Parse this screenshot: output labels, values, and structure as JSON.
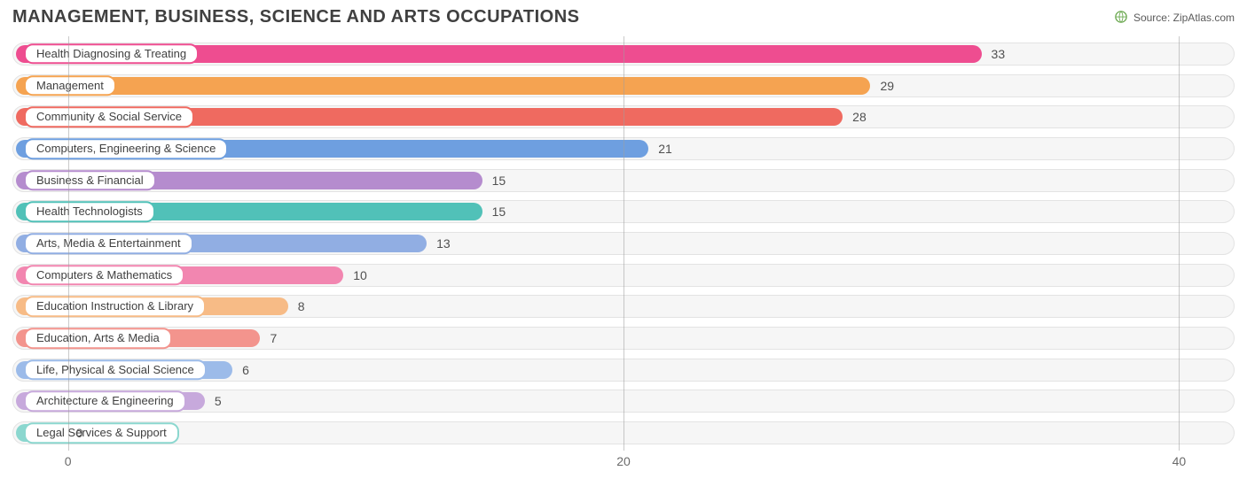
{
  "chart": {
    "type": "bar-horizontal",
    "title": "MANAGEMENT, BUSINESS, SCIENCE AND ARTS OCCUPATIONS",
    "title_fontsize": 20,
    "title_color": "#404040",
    "source_label": "Source:",
    "source_name": "ZipAtlas.com",
    "background_color": "#ffffff",
    "track_bg": "#f6f6f6",
    "track_border": "#e3e3e3",
    "grid_color": "#9e9e9e",
    "value_fontsize": 14,
    "label_fontsize": 13,
    "x_axis": {
      "min": -2,
      "max": 42,
      "ticks": [
        0,
        20,
        40
      ],
      "tick_labels": [
        "0",
        "20",
        "40"
      ]
    },
    "bars": [
      {
        "label": "Health Diagnosing & Treating",
        "value": 33,
        "color": "#ee4d90"
      },
      {
        "label": "Management",
        "value": 29,
        "color": "#f5a351"
      },
      {
        "label": "Community & Social Service",
        "value": 28,
        "color": "#ef6a60"
      },
      {
        "label": "Computers, Engineering & Science",
        "value": 21,
        "color": "#6e9fe0"
      },
      {
        "label": "Business & Financial",
        "value": 15,
        "color": "#b58cce"
      },
      {
        "label": "Health Technologists",
        "value": 15,
        "color": "#51c1b8"
      },
      {
        "label": "Arts, Media & Entertainment",
        "value": 13,
        "color": "#91aee3"
      },
      {
        "label": "Computers & Mathematics",
        "value": 10,
        "color": "#f286b0"
      },
      {
        "label": "Education Instruction & Library",
        "value": 8,
        "color": "#f7bb86"
      },
      {
        "label": "Education, Arts & Media",
        "value": 7,
        "color": "#f3948d"
      },
      {
        "label": "Life, Physical & Social Science",
        "value": 6,
        "color": "#9cbbe9"
      },
      {
        "label": "Architecture & Engineering",
        "value": 5,
        "color": "#c7a9dc"
      },
      {
        "label": "Legal Services & Support",
        "value": 0,
        "color": "#8bd7cf"
      }
    ]
  }
}
